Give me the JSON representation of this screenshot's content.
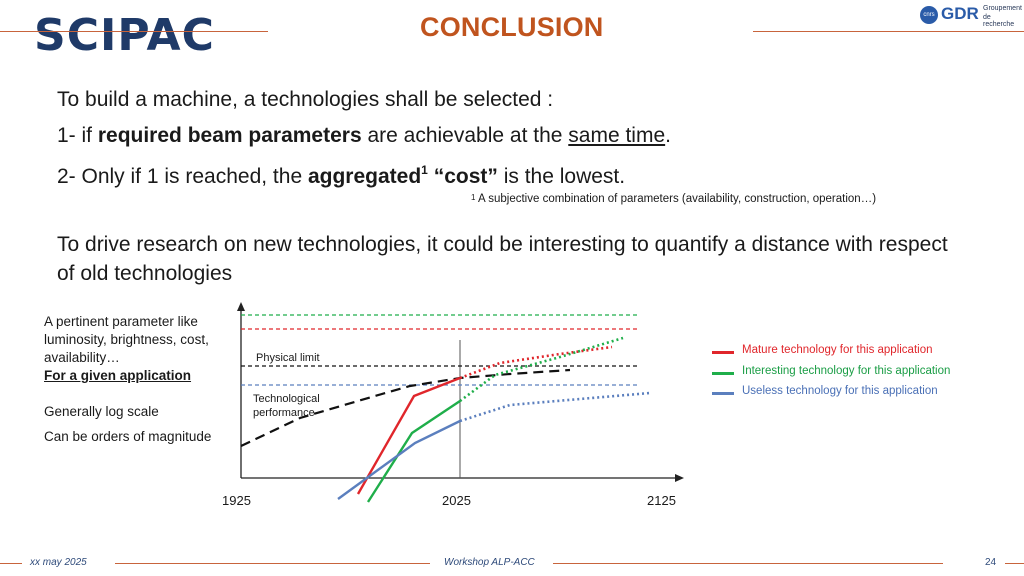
{
  "header": {
    "logo_left": "SCIPAC",
    "title": "CONCLUSION",
    "logo_right_top": "Groupement",
    "logo_right_mid": "de recherche",
    "logo_right_brand": "GDR",
    "logo_right_cnrs": "cnrs"
  },
  "body": {
    "line1": "To build a machine, a technologies shall be selected :",
    "line2": {
      "prefix": "1- if ",
      "bold": "required beam parameters",
      "middle": " are achievable at the ",
      "underline": "same time",
      "suffix": "."
    },
    "line3": {
      "prefix": "2- Only if 1 is reached, the ",
      "bold1": "aggregated",
      "sup": "1",
      "bold2": " “cost”",
      "suffix": " is the lowest."
    },
    "footnote": {
      "sup": "1",
      "text": " A subjective combination of parameters (availability, construction, operation…)"
    },
    "paragraph": "To drive research on new technologies, it could be interesting to quantify a distance with respect of old technologies"
  },
  "left_notes": {
    "p1": "A pertinent parameter like luminosity, brightness, cost, availability…",
    "p1_bold_u": "For a given application",
    "p2": "Generally log scale",
    "p3": "Can be orders of magnitude"
  },
  "diagram": {
    "physical_limit_label": "Physical limit",
    "tech_perf_label_1": "Technological",
    "tech_perf_label_2": "performance",
    "x_ticks": [
      "1925",
      "2025",
      "2125"
    ],
    "colors": {
      "red": "#e0262b",
      "green": "#1fae4a",
      "blue": "#5b7fbe",
      "black": "#111111"
    }
  },
  "legend": [
    {
      "label": "Mature technology for this application",
      "color": "#e0262b"
    },
    {
      "label": "Interesting technology for this application",
      "color": "#1fae4a"
    },
    {
      "label": "Useless technology for this application",
      "color": "#5b7fbe"
    }
  ],
  "footer": {
    "date": "xx may 2025",
    "event": "Workshop ALP-ACC",
    "page": "24"
  }
}
